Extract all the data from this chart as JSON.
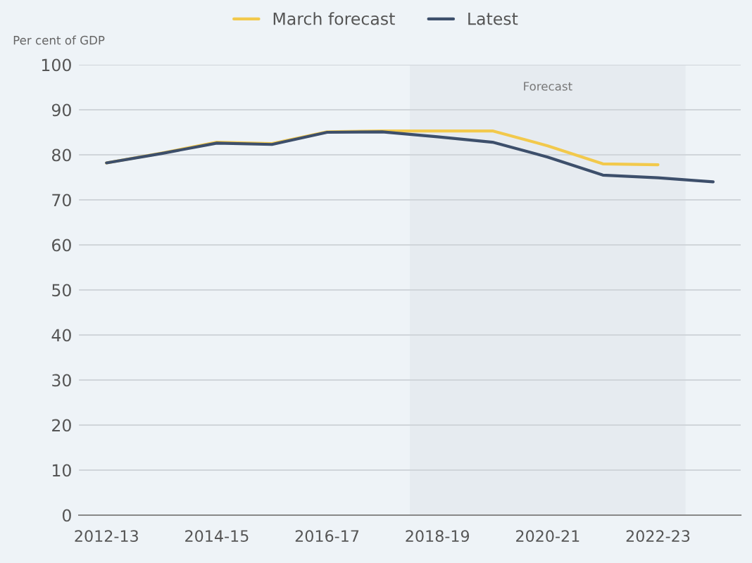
{
  "chart_data": {
    "type": "line",
    "ylabel": "Per cent of GDP",
    "categories": [
      "2012-13",
      null,
      "2014-15",
      null,
      "2016-17",
      null,
      "2018-19",
      null,
      "2020-21",
      null,
      "2022-23",
      null
    ],
    "series": [
      {
        "name": "March forecast",
        "color": "#f2c94c",
        "values": [
          78.2,
          80.4,
          82.8,
          82.5,
          85.1,
          85.3,
          85.3,
          85.3,
          82.0,
          78.0,
          77.8,
          null
        ]
      },
      {
        "name": "Latest",
        "color": "#3d4f6b",
        "values": [
          78.2,
          80.3,
          82.6,
          82.3,
          85.0,
          85.1,
          84.0,
          82.8,
          79.5,
          75.5,
          74.9,
          74.0
        ]
      }
    ],
    "ylim": [
      0,
      100
    ],
    "yticks": [
      0,
      10,
      20,
      30,
      40,
      50,
      60,
      70,
      80,
      90,
      100
    ],
    "bands": [
      {
        "axis": "x",
        "from": "2018-19",
        "to": "2022-23",
        "label": "Forecast",
        "color": "#e6ebf0"
      }
    ],
    "grid": "y",
    "legend": "top",
    "marker": "none",
    "line_style": "solid"
  }
}
